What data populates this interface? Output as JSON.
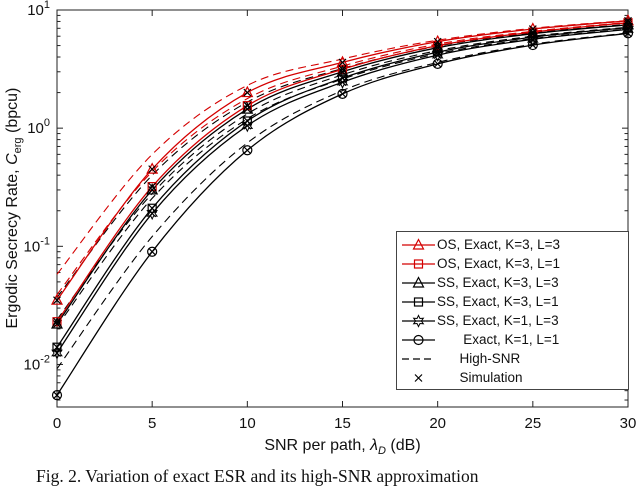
{
  "figure": {
    "caption": "Fig. 2.  Variation of exact ESR and its high-SNR approximation"
  },
  "chart_data": {
    "type": "line",
    "x": [
      0,
      5,
      10,
      15,
      20,
      25,
      30
    ],
    "xlim": [
      0,
      30
    ],
    "xticks": [
      0,
      5,
      10,
      15,
      20,
      25,
      30
    ],
    "ylog": true,
    "ylim_exp": [
      -2.36,
      1
    ],
    "ytick_exponents": [
      -2,
      -1,
      0,
      1
    ],
    "xlabel": {
      "prefix": "SNR per path, ",
      "symbol": "λ",
      "sub": "D",
      "suffix": " (dB)"
    },
    "ylabel": {
      "prefix": "Ergodic Secrecy Rate, ",
      "symbol": "C",
      "sub": "erg",
      "suffix": " (bpcu)"
    },
    "grid": false,
    "legend_position": "lower-right",
    "series": [
      {
        "name": "OS, Exact, K=3, L=3",
        "color": "#d40000",
        "marker": "triangle",
        "values": [
          0.035,
          0.45,
          2.0,
          3.6,
          5.4,
          6.9,
          8.1
        ],
        "high_snr": [
          0.058,
          0.6,
          2.3,
          3.85,
          5.55,
          7.0,
          8.15
        ]
      },
      {
        "name": "OS, Exact, K=3, L=1",
        "color": "#d40000",
        "marker": "square",
        "values": [
          0.023,
          0.32,
          1.55,
          3.15,
          5.0,
          6.5,
          7.8
        ],
        "high_snr": [
          0.039,
          0.43,
          1.78,
          3.35,
          5.15,
          6.6,
          7.85
        ]
      },
      {
        "name": "SS, Exact, K=3, L=3",
        "color": "#000000",
        "marker": "triangle",
        "values": [
          0.022,
          0.3,
          1.45,
          3.0,
          4.8,
          6.3,
          7.5
        ],
        "high_snr": [
          0.037,
          0.4,
          1.66,
          3.2,
          4.95,
          6.4,
          7.55
        ]
      },
      {
        "name": "SS, Exact, K=3, L=1",
        "color": "#000000",
        "marker": "square",
        "values": [
          0.014,
          0.21,
          1.15,
          2.65,
          4.4,
          5.9,
          7.1
        ],
        "high_snr": [
          0.024,
          0.28,
          1.32,
          2.83,
          4.53,
          6.0,
          7.15
        ]
      },
      {
        "name": "SS, Exact, K=1, L=3",
        "color": "#000000",
        "marker": "hexagram",
        "values": [
          0.0125,
          0.19,
          1.05,
          2.45,
          4.15,
          5.65,
          6.85
        ],
        "high_snr": [
          0.021,
          0.255,
          1.2,
          2.6,
          4.27,
          5.73,
          6.9
        ]
      },
      {
        "name": "Exact, K=1, L=1",
        "color": "#000000",
        "marker": "circle",
        "values": [
          0.0055,
          0.09,
          0.65,
          1.95,
          3.5,
          5.05,
          6.35
        ],
        "high_snr": [
          0.0092,
          0.121,
          0.75,
          2.08,
          3.6,
          5.13,
          6.4
        ]
      }
    ]
  },
  "legend": {
    "items": [
      {
        "label": "OS, Exact, K=3, L=3",
        "color": "#d40000",
        "line": "solid",
        "marker": "triangle"
      },
      {
        "label": "OS, Exact, K=3, L=1",
        "color": "#d40000",
        "line": "solid",
        "marker": "square"
      },
      {
        "label": "SS, Exact, K=3, L=3",
        "color": "#000000",
        "line": "solid",
        "marker": "triangle"
      },
      {
        "label": "SS, Exact, K=3, L=1",
        "color": "#000000",
        "line": "solid",
        "marker": "square"
      },
      {
        "label": "SS, Exact, K=1, L=3",
        "color": "#000000",
        "line": "solid",
        "marker": "hexagram"
      },
      {
        "label": "       Exact, K=1, L=1",
        "color": "#000000",
        "line": "solid",
        "marker": "circle"
      },
      {
        "label": "      High-SNR",
        "color": "#000000",
        "line": "dashed",
        "marker": "none"
      },
      {
        "label": "      Simulation",
        "color": "#000000",
        "line": "none",
        "marker": "x"
      }
    ]
  }
}
